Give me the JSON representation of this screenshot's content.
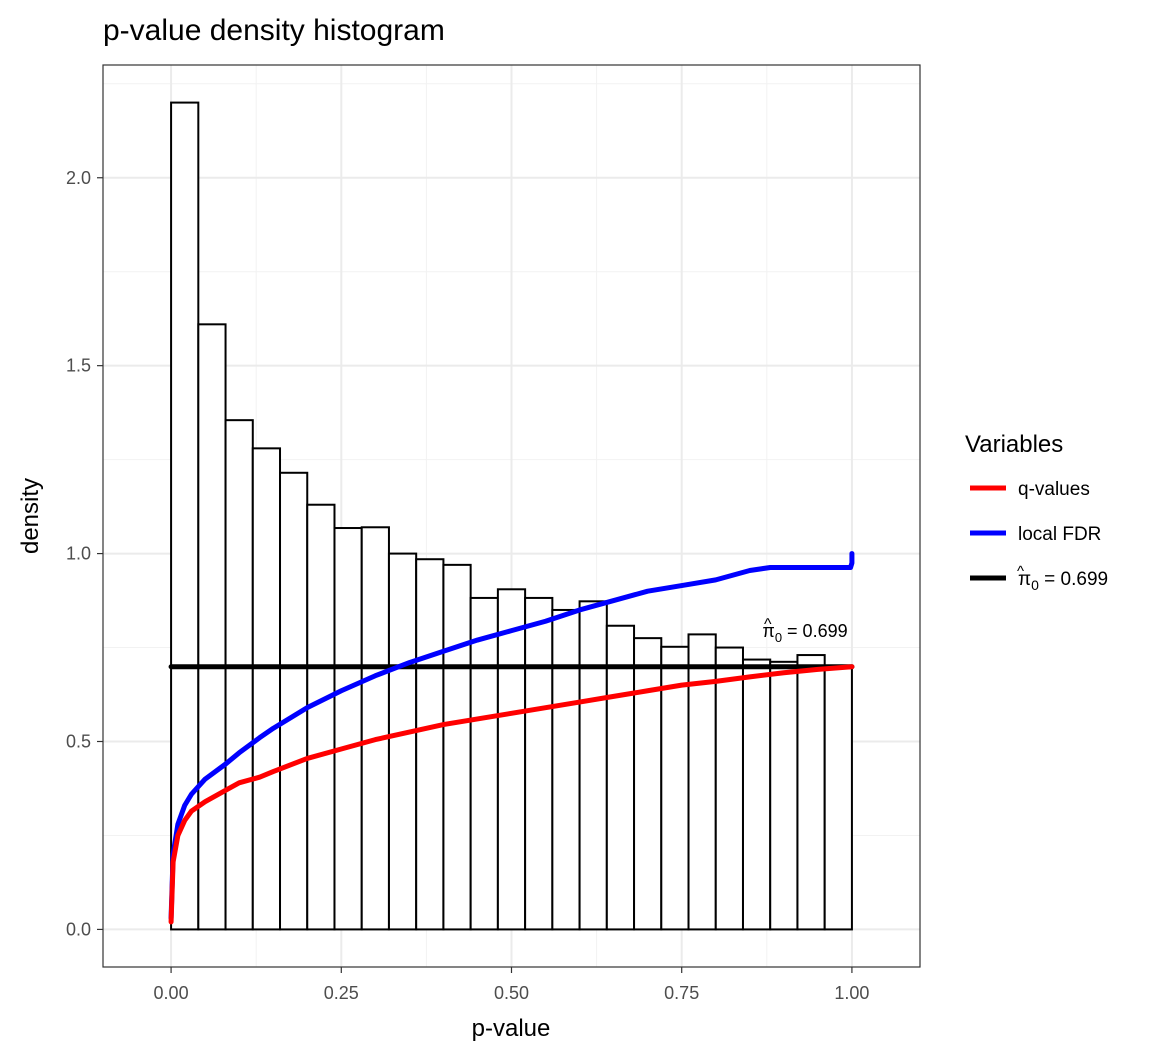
{
  "chart_data": {
    "type": "bar",
    "title": "p-value density histogram",
    "xlabel": "p-value",
    "ylabel": "density",
    "xlim": [
      -0.1,
      1.1
    ],
    "ylim": [
      -0.1,
      2.3
    ],
    "x_ticks": [
      "0.00",
      "0.25",
      "0.50",
      "0.75",
      "1.00"
    ],
    "x_tick_values": [
      0,
      0.25,
      0.5,
      0.75,
      1.0
    ],
    "y_ticks": [
      "0.0",
      "0.5",
      "1.0",
      "1.5",
      "2.0"
    ],
    "y_tick_values": [
      0,
      0.5,
      1.0,
      1.5,
      2.0
    ],
    "grid": true,
    "bin_width": 0.04,
    "histogram_bins_left_edge": [
      0,
      0.04,
      0.08,
      0.12,
      0.16,
      0.2,
      0.24,
      0.28,
      0.32,
      0.36,
      0.4,
      0.44,
      0.48,
      0.52,
      0.56,
      0.6,
      0.64,
      0.68,
      0.72,
      0.76,
      0.8,
      0.84,
      0.88,
      0.92,
      0.96
    ],
    "histogram_density": [
      2.2,
      1.61,
      1.355,
      1.28,
      1.215,
      1.13,
      1.068,
      1.07,
      1.0,
      0.985,
      0.97,
      0.882,
      0.905,
      0.882,
      0.85,
      0.873,
      0.808,
      0.775,
      0.752,
      0.785,
      0.75,
      0.718,
      0.712,
      0.73,
      0.7
    ],
    "series": [
      {
        "name": "q-values",
        "color": "#ff0000",
        "x": [
          0,
          0.003,
          0.01,
          0.02,
          0.03,
          0.05,
          0.08,
          0.1,
          0.13,
          0.15,
          0.2,
          0.25,
          0.3,
          0.35,
          0.4,
          0.45,
          0.5,
          0.55,
          0.6,
          0.65,
          0.7,
          0.75,
          0.8,
          0.85,
          0.9,
          0.95,
          1.0
        ],
        "y": [
          0.02,
          0.18,
          0.25,
          0.29,
          0.315,
          0.34,
          0.37,
          0.39,
          0.405,
          0.42,
          0.455,
          0.48,
          0.505,
          0.525,
          0.545,
          0.56,
          0.575,
          0.59,
          0.605,
          0.62,
          0.635,
          0.65,
          0.66,
          0.672,
          0.683,
          0.692,
          0.699
        ]
      },
      {
        "name": "local FDR",
        "color": "#0000ff",
        "x": [
          0,
          0.003,
          0.01,
          0.02,
          0.03,
          0.05,
          0.08,
          0.1,
          0.13,
          0.15,
          0.2,
          0.25,
          0.3,
          0.35,
          0.4,
          0.45,
          0.5,
          0.55,
          0.6,
          0.65,
          0.7,
          0.75,
          0.8,
          0.85,
          0.88,
          0.9,
          0.95,
          0.998,
          1.0,
          1.0
        ],
        "y": [
          0.03,
          0.2,
          0.28,
          0.33,
          0.36,
          0.4,
          0.44,
          0.47,
          0.51,
          0.535,
          0.59,
          0.635,
          0.675,
          0.71,
          0.74,
          0.77,
          0.795,
          0.82,
          0.85,
          0.875,
          0.9,
          0.915,
          0.93,
          0.955,
          0.963,
          0.963,
          0.963,
          0.963,
          0.975,
          1.0
        ]
      },
      {
        "name": "π̂₀ = 0.699",
        "color": "#000000",
        "x": [
          0,
          1
        ],
        "y": [
          0.699,
          0.699
        ]
      }
    ],
    "legend": {
      "title": "Variables",
      "position": "right",
      "items": [
        {
          "label": "q-values",
          "color": "#ff0000"
        },
        {
          "label": "local FDR",
          "color": "#0000ff"
        },
        {
          "label_hat": "π",
          "label_sub": "0",
          "label_rest": " = 0.699",
          "color": "#000000"
        }
      ]
    },
    "annotation": {
      "hat": "π",
      "sub": "0",
      "rest": " = 0.699",
      "x": 0.88,
      "y": 0.78
    }
  }
}
